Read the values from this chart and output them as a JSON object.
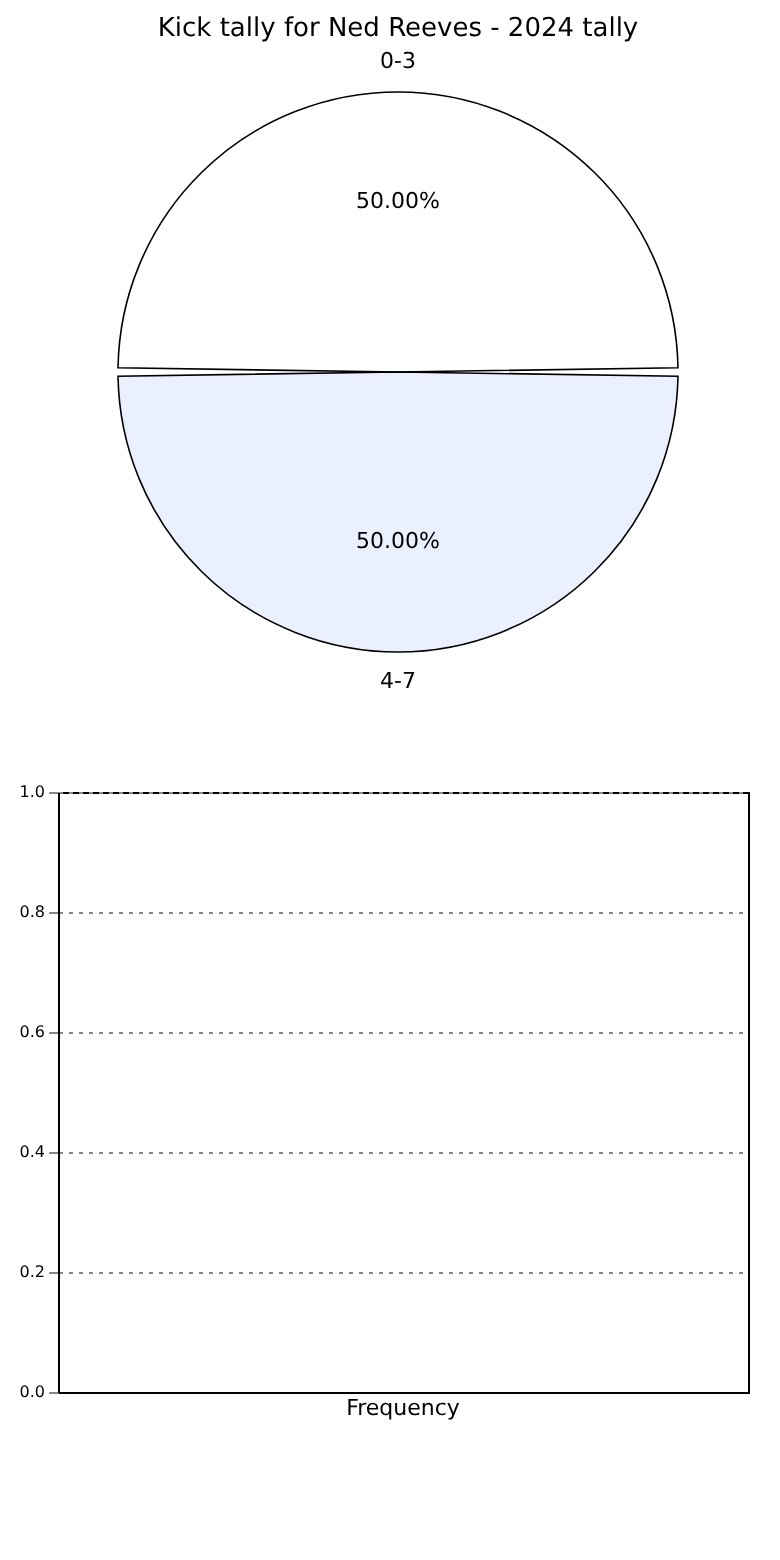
{
  "chart_data": [
    {
      "type": "pie",
      "title": "Kick tally for Ned Reeves - 2024 tally",
      "categories": [
        "0-3",
        "4-7"
      ],
      "values": [
        50,
        50
      ],
      "colors": [
        "#ffffff",
        "#eaf0fd"
      ],
      "value_labels": [
        "50.00%",
        "50.00%"
      ]
    },
    {
      "type": "bar",
      "categories": [
        "Frequency"
      ],
      "values": [
        0
      ],
      "ylim": [
        0,
        1
      ],
      "yticks": [
        {
          "value": 0,
          "label": "0.0"
        },
        {
          "value": 0.2,
          "label": "0.2"
        },
        {
          "value": 0.4,
          "label": "0.4"
        },
        {
          "value": 0.6,
          "label": "0.6"
        },
        {
          "value": 0.8,
          "label": "0.8"
        },
        {
          "value": 1,
          "label": "1.0"
        }
      ],
      "grid": "y"
    }
  ]
}
